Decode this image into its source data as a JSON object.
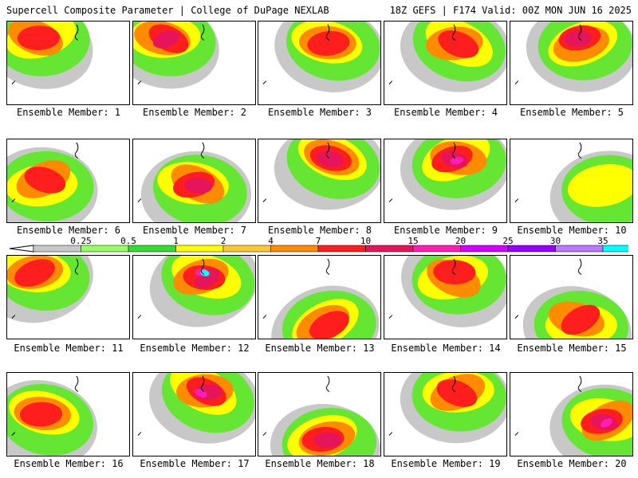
{
  "header": {
    "left": "Supercell Composite Parameter | College of DuPage NEXLAB",
    "right": "18Z GEFS | F174 Valid: 00Z MON JUN 16 2025"
  },
  "panels": [
    {
      "label": "Ensemble Member: 1",
      "level": 3,
      "core": "upper-left"
    },
    {
      "label": "Ensemble Member: 2",
      "level": 4,
      "core": "upper-left"
    },
    {
      "label": "Ensemble Member: 3",
      "level": 3,
      "core": "upper-center"
    },
    {
      "label": "Ensemble Member: 4",
      "level": 3,
      "core": "upper-center"
    },
    {
      "label": "Ensemble Member: 5",
      "level": 4,
      "core": "upper-center"
    },
    {
      "label": "Ensemble Member: 6",
      "level": 3,
      "core": "center-left"
    },
    {
      "label": "Ensemble Member: 7",
      "level": 4,
      "core": "center"
    },
    {
      "label": "Ensemble Member: 8",
      "level": 4,
      "core": "upper-center"
    },
    {
      "label": "Ensemble Member: 9",
      "level": 5,
      "core": "upper-center"
    },
    {
      "label": "Ensemble Member: 10",
      "level": 1,
      "core": "center-right"
    },
    {
      "label": "Ensemble Member: 11",
      "level": 3,
      "core": "upper-left"
    },
    {
      "label": "Ensemble Member: 12",
      "level": 6,
      "core": "upper-center"
    },
    {
      "label": "Ensemble Member: 13",
      "level": 3,
      "core": "lower-center"
    },
    {
      "label": "Ensemble Member: 14",
      "level": 3,
      "core": "upper-center"
    },
    {
      "label": "Ensemble Member: 15",
      "level": 3,
      "core": "lower-center"
    },
    {
      "label": "Ensemble Member: 16",
      "level": 3,
      "core": "center-left"
    },
    {
      "label": "Ensemble Member: 17",
      "level": 5,
      "core": "upper-center"
    },
    {
      "label": "Ensemble Member: 18",
      "level": 4,
      "core": "lower-center"
    },
    {
      "label": "Ensemble Member: 19",
      "level": 3,
      "core": "upper-center"
    },
    {
      "label": "Ensemble Member: 20",
      "level": 5,
      "core": "center-right"
    }
  ],
  "colorbar": {
    "labels": [
      "0.25",
      "0.5",
      "1",
      "2",
      "4",
      "7",
      "10",
      "15",
      "20",
      "25",
      "30",
      "35"
    ],
    "colors": [
      "#c8c8c8",
      "#96ff64",
      "#32dc32",
      "#ffff00",
      "#ffc832",
      "#ff8c00",
      "#ff1e1e",
      "#e6145a",
      "#ff1eb4",
      "#d200ff",
      "#9600ff",
      "#be78ff",
      "#00ffff"
    ]
  }
}
